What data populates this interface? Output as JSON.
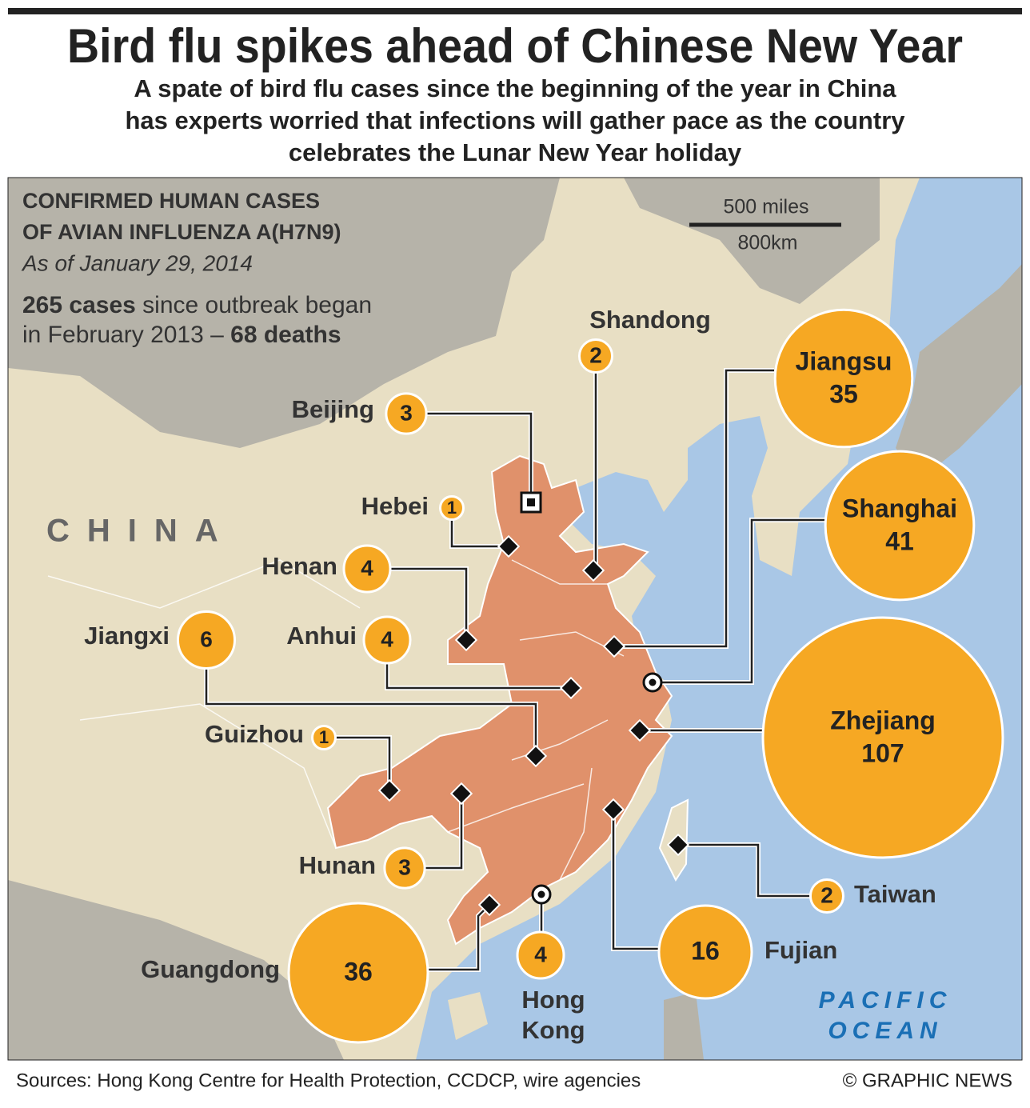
{
  "header": {
    "title": "Bird flu spikes ahead of Chinese New Year",
    "subtitle": [
      "A spate of bird flu cases since the beginning of the year in China",
      "has experts worried that infections will gather pace as the country",
      "celebrates the Lunar New Year holiday"
    ]
  },
  "info": {
    "heading": [
      "CONFIRMED HUMAN CASES",
      "OF AVIAN INFLUENZA A(H7N9)"
    ],
    "date": "As of January 29, 2014",
    "summary": [
      [
        {
          "text": "265 cases",
          "bold": true
        },
        {
          "text": " since outbreak began",
          "bold": false
        }
      ],
      [
        {
          "text": "in February 2013 – ",
          "bold": false
        },
        {
          "text": "68 deaths",
          "bold": true
        }
      ]
    ]
  },
  "scale": {
    "miles": "500 miles",
    "km": "800km"
  },
  "country_label": "CHINA",
  "ocean_label": [
    "PACIFIC",
    "OCEAN"
  ],
  "provinces": [
    {
      "name": [
        "Shandong"
      ],
      "cases": 2
    },
    {
      "name": [
        "Beijing"
      ],
      "cases": 3
    },
    {
      "name": [
        "Hebei"
      ],
      "cases": 1
    },
    {
      "name": [
        "Henan"
      ],
      "cases": 4
    },
    {
      "name": [
        "Jiangxi"
      ],
      "cases": 6
    },
    {
      "name": [
        "Anhui"
      ],
      "cases": 4
    },
    {
      "name": [
        "Guizhou"
      ],
      "cases": 1
    },
    {
      "name": [
        "Hunan"
      ],
      "cases": 3
    },
    {
      "name": [
        "Guangdong"
      ],
      "cases": 36
    },
    {
      "name": [
        "Hong",
        "Kong"
      ],
      "cases": 4
    },
    {
      "name": [
        "Fujian"
      ],
      "cases": 16
    },
    {
      "name": [
        "Taiwan"
      ],
      "cases": 2
    },
    {
      "name": [
        "Zhejiang"
      ],
      "cases": 107
    },
    {
      "name": [
        "Shanghai"
      ],
      "cases": 41
    },
    {
      "name": [
        "Jiangsu"
      ],
      "cases": 35
    }
  ],
  "footer": {
    "sources": "Sources: Hong Kong Centre for Health Protection, CCDCP, wire agencies",
    "credit": "© GRAPHIC NEWS"
  }
}
